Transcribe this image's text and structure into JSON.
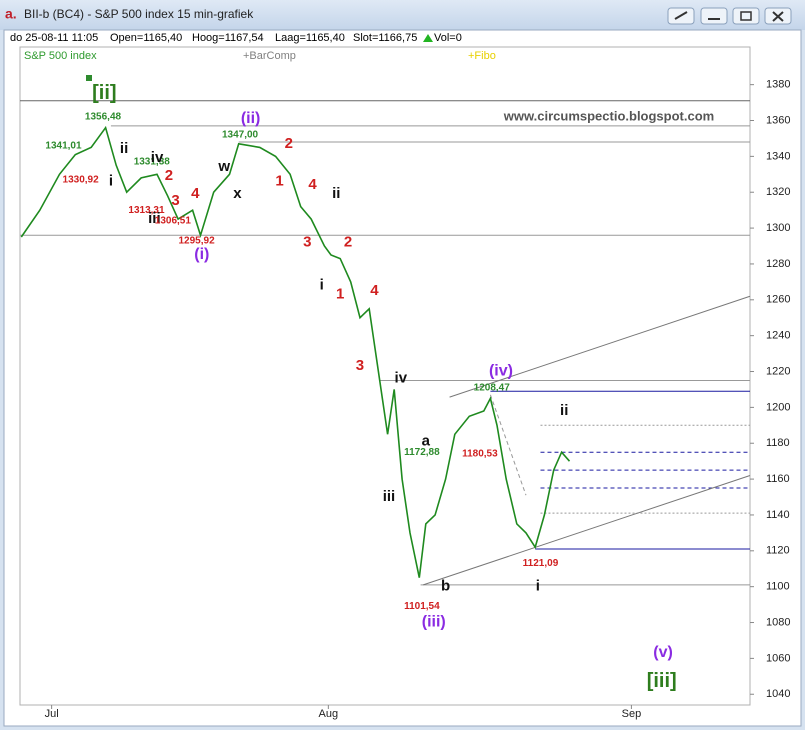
{
  "chart_data": {
    "type": "line",
    "title": "BII-b (BC4) - S&P 500 index 15 min-grafiek",
    "info": [
      "do 25-08-11 11:05",
      "Open=1165,40",
      "Hoog=1167,54",
      "Laag=1165,40",
      "Slot=1166,75",
      "Vol=0"
    ],
    "legend": [
      {
        "text": "S&P 500 index",
        "color": "#2e9a2e"
      },
      {
        "text": "+BarComp",
        "color": "#808080"
      },
      {
        "text": "+Fibo",
        "color": "#e8d000"
      }
    ],
    "x": [
      -2.3,
      -0.9,
      0.6,
      1.8,
      3,
      4.1,
      4.9,
      5.7,
      6.8,
      8,
      8.8,
      9.6,
      10.7,
      11.3,
      12.3,
      13.5,
      14.2,
      15.8,
      17,
      18.1,
      18.9,
      19.7,
      20.7,
      21.2,
      21.9,
      22.7,
      23.4,
      24.1,
      24.8,
      25.5,
      26,
      26.6,
      27.2,
      27.9,
      28.4,
      29.1,
      29.9,
      30.6,
      31.7,
      32.8,
      33.3,
      33.8,
      34.5,
      35.3,
      36,
      36.7,
      37.4,
      38.1,
      38.7,
      39.3
    ],
    "series": [
      {
        "name": "S&P 500 index",
        "color": "#1f8a1f",
        "values": [
          1295,
          1310,
          1330,
          1341,
          1345,
          1356,
          1335,
          1320,
          1328,
          1330,
          1318,
          1305,
          1310,
          1296,
          1320,
          1330,
          1347,
          1345,
          1340,
          1330,
          1312,
          1305,
          1290,
          1285,
          1283,
          1270,
          1250,
          1255,
          1220,
          1185,
          1210,
          1160,
          1130,
          1105,
          1135,
          1140,
          1160,
          1185,
          1195,
          1198,
          1205,
          1190,
          1160,
          1135,
          1130,
          1122,
          1140,
          1165,
          1175,
          1170
        ]
      }
    ],
    "xlim": [
      -2.4,
      53
    ],
    "xticks": [
      {
        "value": 0,
        "label": "Jul"
      },
      {
        "value": 21,
        "label": "Aug"
      },
      {
        "value": 44,
        "label": "Sep"
      }
    ],
    "ylim": [
      1034,
      1401
    ],
    "yticks": [
      1040,
      1060,
      1080,
      1100,
      1120,
      1140,
      1160,
      1180,
      1200,
      1220,
      1240,
      1260,
      1280,
      1300,
      1320,
      1340,
      1360,
      1380
    ],
    "hlines": [
      {
        "value": 1371,
        "x0": -2.4,
        "color": "#666666",
        "style": "solid"
      },
      {
        "value": 1357,
        "x0": 4.5,
        "color": "#999999",
        "style": "solid"
      },
      {
        "value": 1348,
        "x0": 14.2,
        "color": "#999999",
        "style": "solid"
      },
      {
        "value": 1296,
        "x0": -2.4,
        "color": "#999999",
        "style": "solid"
      },
      {
        "value": 1215,
        "x0": 24.9,
        "color": "#999999",
        "style": "solid"
      },
      {
        "value": 1209,
        "x0": 33.3,
        "color": "#1a1aa0",
        "style": "solid"
      },
      {
        "value": 1190,
        "x0": 37.1,
        "color": "#999999",
        "style": "dotted"
      },
      {
        "value": 1175,
        "x0": 37.1,
        "color": "#1a1aa0",
        "style": "dashed"
      },
      {
        "value": 1165,
        "x0": 37.1,
        "color": "#1a1aa0",
        "style": "dashed"
      },
      {
        "value": 1155,
        "x0": 37.1,
        "color": "#1a1aa0",
        "style": "dashed"
      },
      {
        "value": 1141,
        "x0": 37.1,
        "color": "#999999",
        "style": "dotted"
      },
      {
        "value": 1121,
        "x0": 36.7,
        "color": "#1a1aa0",
        "style": "solid"
      },
      {
        "value": 1101,
        "x0": 28,
        "color": "#999999",
        "style": "solid"
      }
    ],
    "trendlines": [
      {
        "x": [
          30.2,
          53
        ],
        "y": [
          1205.7,
          1262
        ],
        "color": "#777777",
        "style": "solid"
      },
      {
        "x": [
          28.2,
          53
        ],
        "y": [
          1101,
          1162
        ],
        "color": "#777777",
        "style": "solid"
      },
      {
        "x": [
          33.3,
          36
        ],
        "y": [
          1207,
          1151
        ],
        "color": "#999999",
        "style": "dashed"
      }
    ],
    "annotations": [
      {
        "text": "[ii]",
        "x": 4,
        "y": 1375,
        "color": "#2e7d1e"
      },
      {
        "text": "1356,48",
        "x": 3.9,
        "y": 1362,
        "color": "#2e8b2e"
      },
      {
        "text": "1341,01",
        "x": 0.9,
        "y": 1346,
        "color": "#2e8b2e"
      },
      {
        "text": "1330,92",
        "x": 2.2,
        "y": 1327,
        "color": "#d02020"
      },
      {
        "text": "ii",
        "x": 5.5,
        "y": 1344,
        "color": "#111111"
      },
      {
        "text": "i",
        "x": 4.5,
        "y": 1326,
        "color": "#111111"
      },
      {
        "text": "1331,38",
        "x": 7.6,
        "y": 1337,
        "color": "#2e8b2e"
      },
      {
        "text": "iv",
        "x": 8,
        "y": 1339,
        "color": "#111111"
      },
      {
        "text": "2",
        "x": 8.9,
        "y": 1329,
        "color": "#d02020"
      },
      {
        "text": "3",
        "x": 9.4,
        "y": 1315,
        "color": "#d02020"
      },
      {
        "text": "4",
        "x": 10.9,
        "y": 1319,
        "color": "#d02020"
      },
      {
        "text": "1313,31",
        "x": 7.2,
        "y": 1310,
        "color": "#d02020"
      },
      {
        "text": "iii",
        "x": 7.8,
        "y": 1305,
        "color": "#111111"
      },
      {
        "text": "1306,51",
        "x": 9.2,
        "y": 1304,
        "color": "#d02020"
      },
      {
        "text": "1295,92",
        "x": 11,
        "y": 1293,
        "color": "#d02020"
      },
      {
        "text": "(i)",
        "x": 11.4,
        "y": 1285,
        "color": "#8a2be2"
      },
      {
        "text": "(ii)",
        "x": 15.1,
        "y": 1361,
        "color": "#8a2be2"
      },
      {
        "text": "1347,00",
        "x": 14.3,
        "y": 1352,
        "color": "#2e8b2e"
      },
      {
        "text": "w",
        "x": 13.1,
        "y": 1334,
        "color": "#111111"
      },
      {
        "text": "x",
        "x": 14.1,
        "y": 1319,
        "color": "#111111"
      },
      {
        "text": "2",
        "x": 18,
        "y": 1347,
        "color": "#d02020"
      },
      {
        "text": "1",
        "x": 17.3,
        "y": 1326,
        "color": "#d02020"
      },
      {
        "text": "4",
        "x": 19.8,
        "y": 1324,
        "color": "#d02020"
      },
      {
        "text": "ii",
        "x": 21.6,
        "y": 1319,
        "color": "#111111"
      },
      {
        "text": "3",
        "x": 19.4,
        "y": 1292,
        "color": "#d02020"
      },
      {
        "text": "2",
        "x": 22.5,
        "y": 1292,
        "color": "#d02020"
      },
      {
        "text": "i",
        "x": 20.5,
        "y": 1268,
        "color": "#111111"
      },
      {
        "text": "1",
        "x": 21.9,
        "y": 1263,
        "color": "#d02020"
      },
      {
        "text": "4",
        "x": 24.5,
        "y": 1265,
        "color": "#d02020"
      },
      {
        "text": "3",
        "x": 23.4,
        "y": 1223,
        "color": "#d02020"
      },
      {
        "text": "iv",
        "x": 26.5,
        "y": 1216,
        "color": "#111111"
      },
      {
        "text": "a",
        "x": 28.4,
        "y": 1181,
        "color": "#111111"
      },
      {
        "text": "1172,88",
        "x": 28.1,
        "y": 1175,
        "color": "#2e8b2e"
      },
      {
        "text": "iii",
        "x": 25.6,
        "y": 1150,
        "color": "#111111"
      },
      {
        "text": "b",
        "x": 29.9,
        "y": 1100,
        "color": "#111111"
      },
      {
        "text": "1101,54",
        "x": 28.1,
        "y": 1089,
        "color": "#d02020"
      },
      {
        "text": "(iii)",
        "x": 29,
        "y": 1080,
        "color": "#8a2be2"
      },
      {
        "text": "(iv)",
        "x": 34.1,
        "y": 1220,
        "color": "#8a2be2"
      },
      {
        "text": "1208,47",
        "x": 33.4,
        "y": 1211,
        "color": "#2e8b2e"
      },
      {
        "text": "1180,53",
        "x": 32.5,
        "y": 1174,
        "color": "#d02020"
      },
      {
        "text": "ii",
        "x": 38.9,
        "y": 1198,
        "color": "#111111"
      },
      {
        "text": "1121,09",
        "x": 37.1,
        "y": 1113,
        "color": "#d02020"
      },
      {
        "text": "i",
        "x": 36.9,
        "y": 1100,
        "color": "#111111"
      },
      {
        "text": "(v)",
        "x": 46.4,
        "y": 1063,
        "color": "#8a2be2"
      },
      {
        "text": "[iii]",
        "x": 46.3,
        "y": 1047,
        "color": "#2e7d1e"
      },
      {
        "text": "www.circumspectio.blogspot.com",
        "x": 42.3,
        "y": 1362,
        "color": "#555555"
      }
    ]
  }
}
